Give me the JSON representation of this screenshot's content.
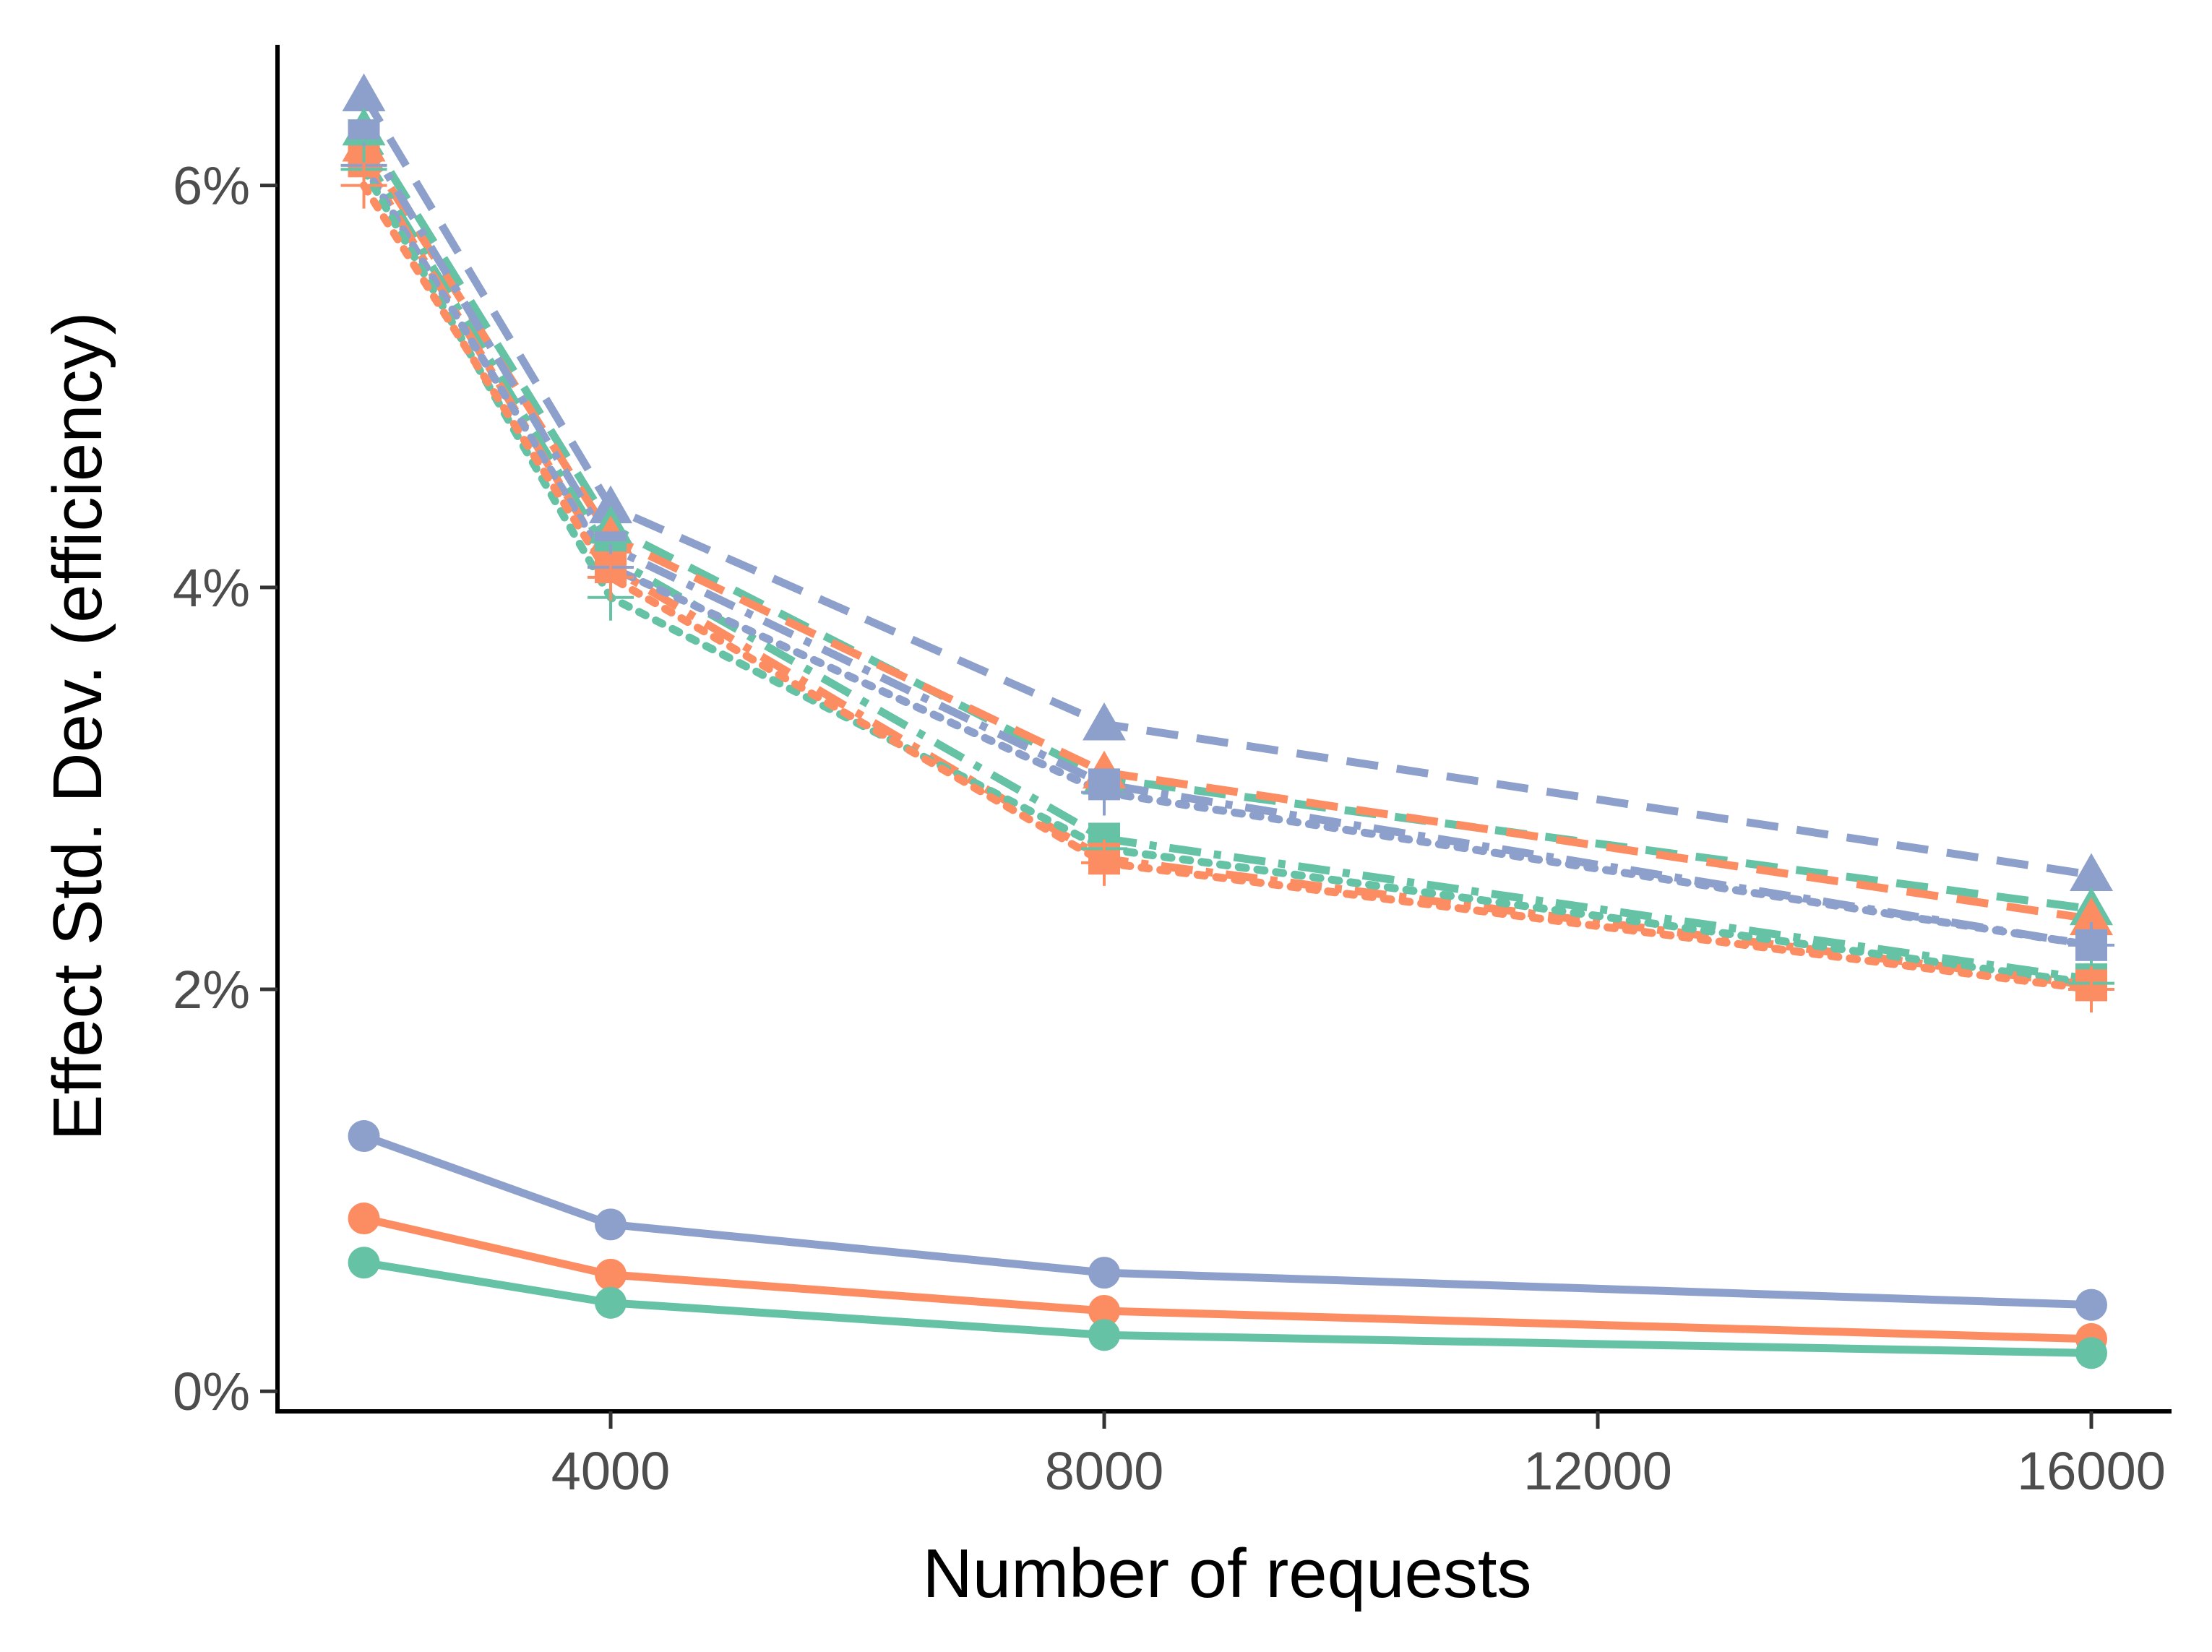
{
  "chart_data": {
    "type": "line",
    "title": "",
    "xlabel": "Number of requests",
    "ylabel": "Effect Std. Dev. (efficiency)",
    "xlim": [
      1300,
      16650
    ],
    "ylim": [
      -0.1,
      6.7
    ],
    "x_ticks": [
      4000,
      8000,
      12000,
      16000
    ],
    "x_tick_labels": [
      "4000",
      "8000",
      "12000",
      "16000"
    ],
    "y_ticks": [
      0,
      2,
      4,
      6
    ],
    "y_tick_labels": [
      "0%",
      "2%",
      "4%",
      "6%"
    ],
    "grid": false,
    "legend": "none",
    "x": [
      2000,
      4000,
      8000,
      16000
    ],
    "series": [
      {
        "color": "#8DA0CB",
        "linestyle": "solid",
        "marker": "circle",
        "values": [
          1.27,
          0.83,
          0.59,
          0.43
        ]
      },
      {
        "color": "#FC8D62",
        "linestyle": "solid",
        "marker": "circle",
        "values": [
          0.86,
          0.58,
          0.4,
          0.26
        ]
      },
      {
        "color": "#66C2A5",
        "linestyle": "solid",
        "marker": "circle",
        "values": [
          0.64,
          0.44,
          0.28,
          0.19
        ]
      },
      {
        "color": "#8DA0CB",
        "linestyle": "dashed",
        "marker": "triangle",
        "values": [
          6.45,
          4.4,
          3.32,
          2.57
        ]
      },
      {
        "color": "#66C2A5",
        "linestyle": "dashed",
        "marker": "triangle",
        "values": [
          6.28,
          4.3,
          3.05,
          2.4
        ]
      },
      {
        "color": "#FC8D62",
        "linestyle": "dashed",
        "marker": "triangle",
        "values": [
          6.2,
          4.25,
          3.08,
          2.35
        ]
      },
      {
        "color": "#8DA0CB",
        "linestyle": "dashdot",
        "marker": "square",
        "values": [
          6.25,
          4.2,
          3.02,
          2.22
        ]
      },
      {
        "color": "#66C2A5",
        "linestyle": "dashdot",
        "marker": "square",
        "values": [
          6.15,
          4.15,
          2.75,
          2.05
        ]
      },
      {
        "color": "#FC8D62",
        "linestyle": "dashdot",
        "marker": "square",
        "values": [
          6.12,
          4.1,
          2.65,
          2.02
        ]
      },
      {
        "color": "#8DA0CB",
        "linestyle": "dotted",
        "marker": "plus",
        "values": [
          6.1,
          4.1,
          2.98,
          2.22
        ]
      },
      {
        "color": "#66C2A5",
        "linestyle": "dotted",
        "marker": "plus",
        "values": [
          6.08,
          3.95,
          2.7,
          2.03
        ]
      },
      {
        "color": "#FC8D62",
        "linestyle": "dotted",
        "marker": "plus",
        "values": [
          6.0,
          4.05,
          2.63,
          2.0
        ]
      }
    ]
  }
}
